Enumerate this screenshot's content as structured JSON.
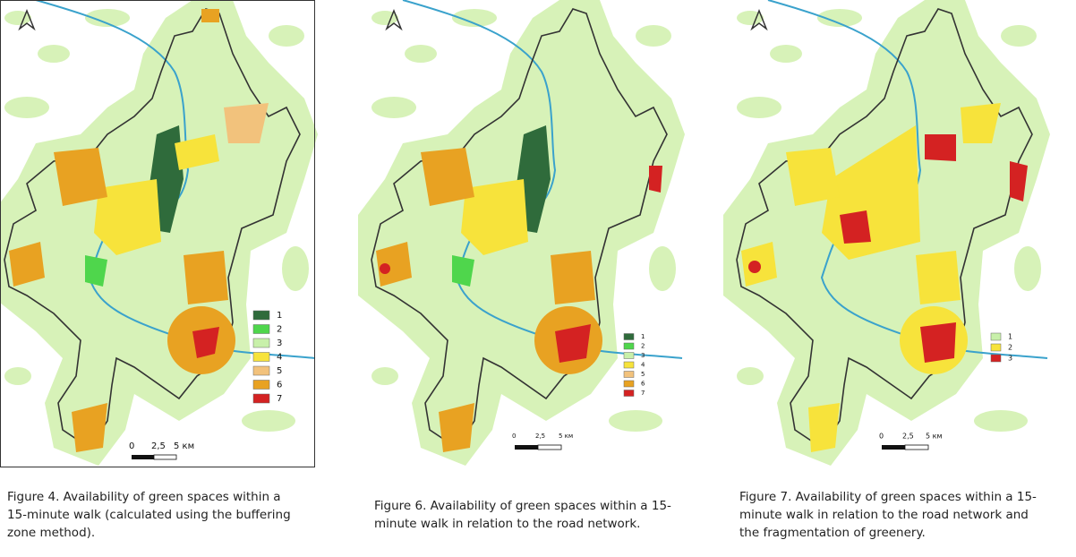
{
  "panels": [
    {
      "legend": [
        {
          "label": "1",
          "color": "#2f6b3b"
        },
        {
          "label": "2",
          "color": "#4fd64c"
        },
        {
          "label": "3",
          "color": "#c8f0aa"
        },
        {
          "label": "4",
          "color": "#f7e33b"
        },
        {
          "label": "5",
          "color": "#f2c27c"
        },
        {
          "label": "6",
          "color": "#e8a222"
        },
        {
          "label": "7",
          "color": "#d42222"
        }
      ],
      "scale": [
        "0",
        "2,5",
        "5 км"
      ],
      "caption": [
        "Figure 4. Availability of green spaces within a",
        "15-minute walk (calculated using the buffering",
        "zone method)."
      ]
    },
    {
      "legend": [
        {
          "label": "1",
          "color": "#2f6b3b"
        },
        {
          "label": "2",
          "color": "#4fd64c"
        },
        {
          "label": "3",
          "color": "#c8f0aa"
        },
        {
          "label": "4",
          "color": "#f7e33b"
        },
        {
          "label": "5",
          "color": "#f2c27c"
        },
        {
          "label": "6",
          "color": "#e8a222"
        },
        {
          "label": "7",
          "color": "#d42222"
        }
      ],
      "scale": [
        "0",
        "2,5",
        "5 км"
      ],
      "caption": [
        "Figure 6. Availability of green spaces within a 15-",
        "minute walk in relation to the road network."
      ]
    },
    {
      "legend": [
        {
          "label": "1",
          "color": "#c8f0aa"
        },
        {
          "label": "2",
          "color": "#f7e33b"
        },
        {
          "label": "3",
          "color": "#d42222"
        }
      ],
      "scale": [
        "0",
        "2,5",
        "5 км"
      ],
      "caption": [
        "Figure 7. Availability of green spaces within a 15-",
        "minute walk in relation to the road network and",
        "the fragmentation of greenery."
      ]
    }
  ]
}
